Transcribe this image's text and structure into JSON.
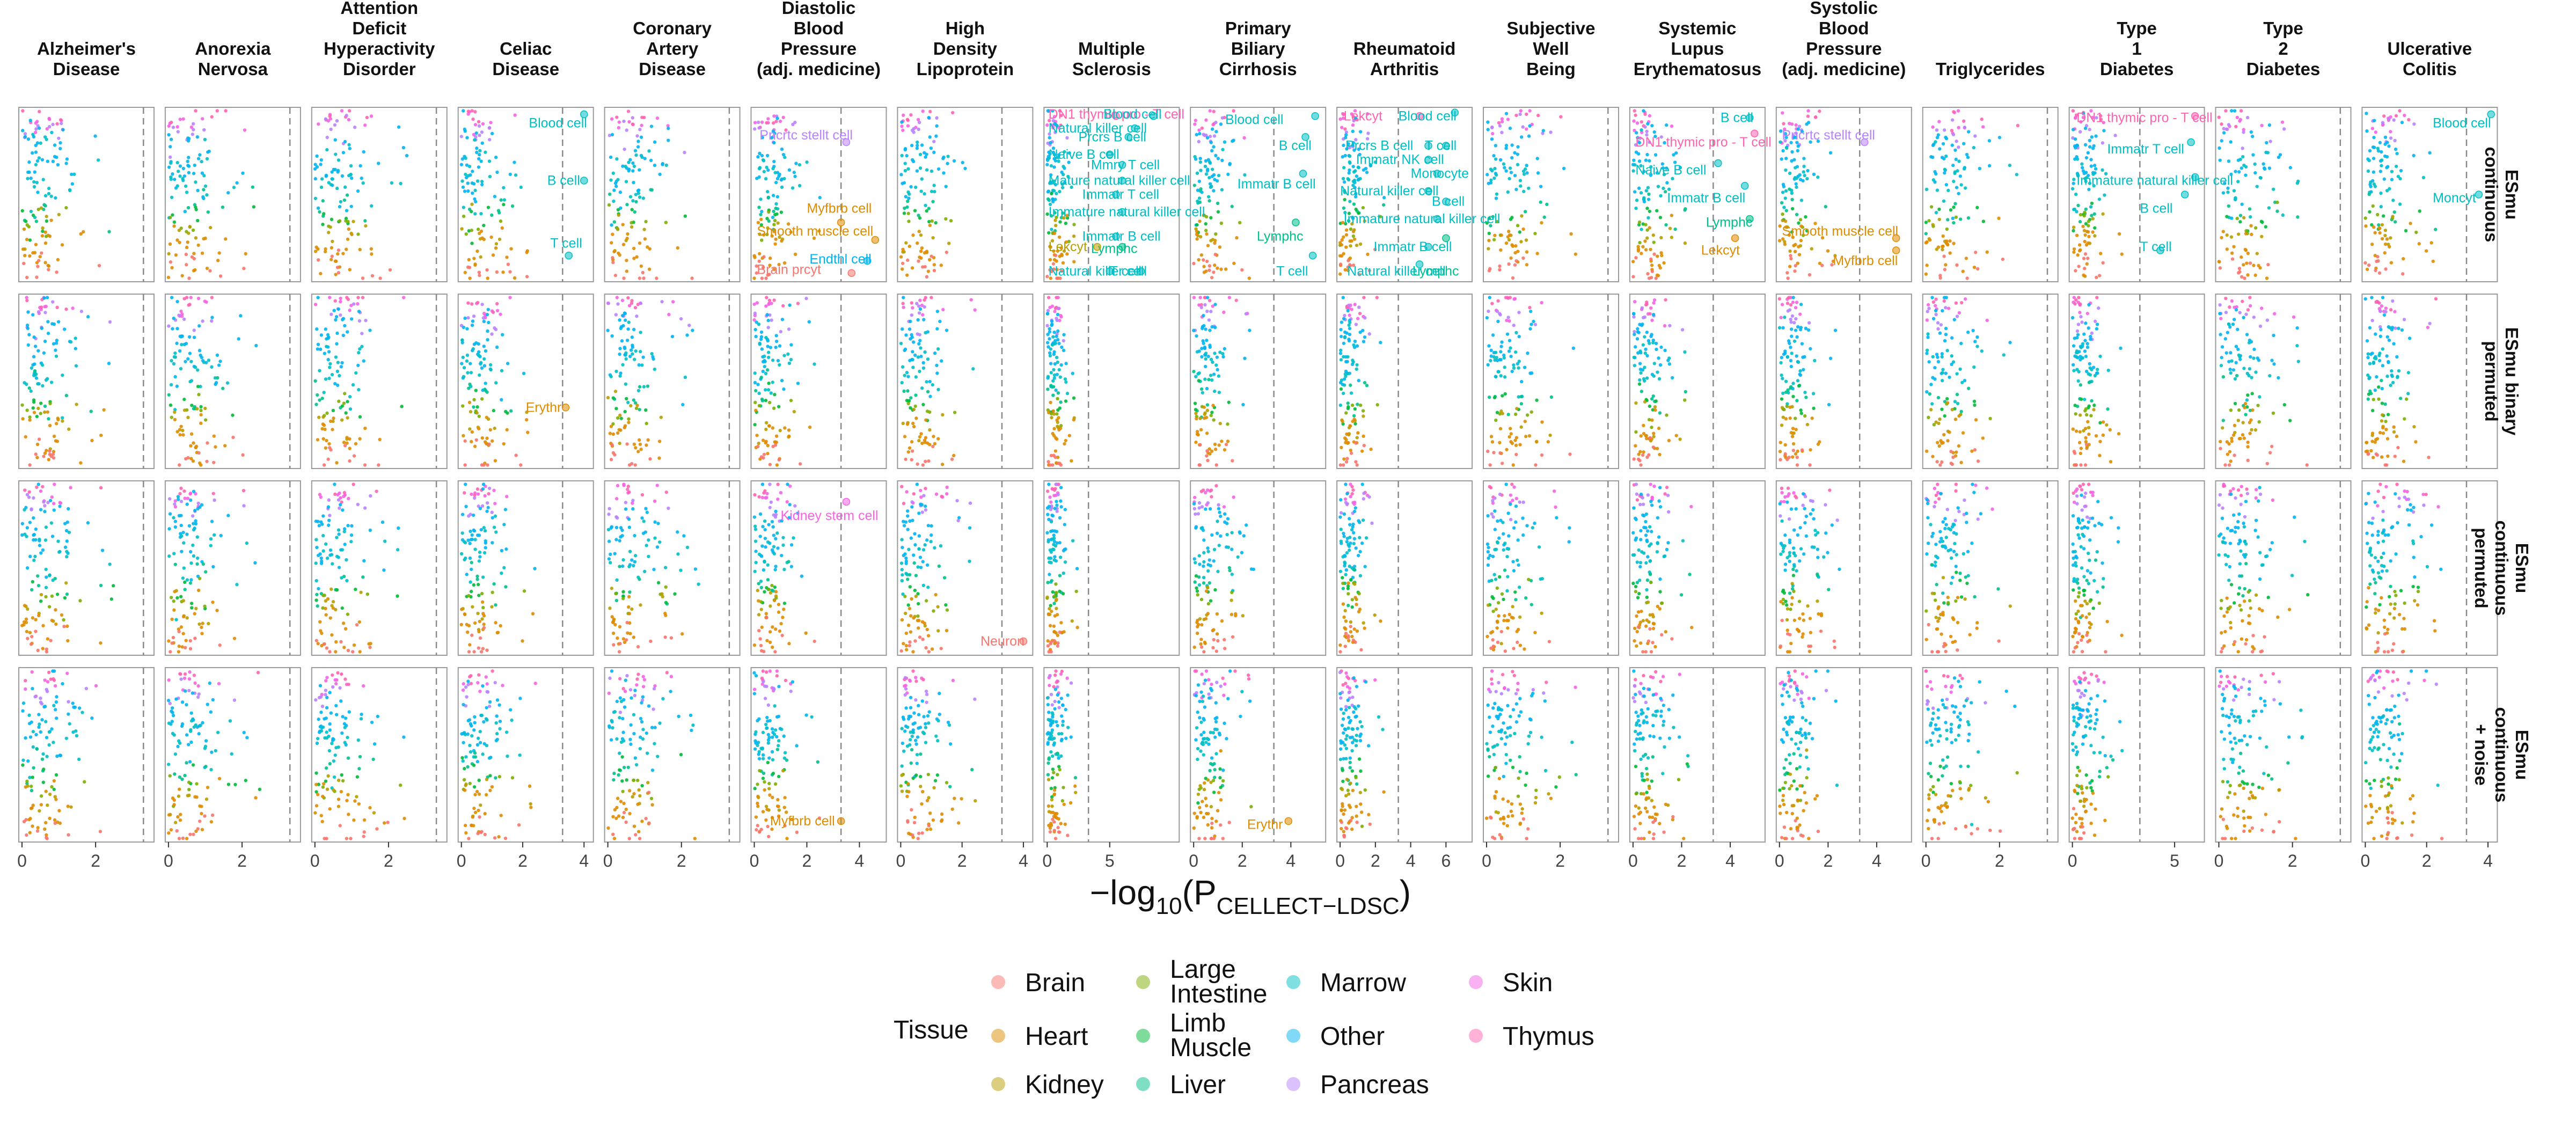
{
  "chart_data": {
    "type": "scatter",
    "facet_columns": [
      {
        "id": "alz",
        "title": "Alzheimer's\nDisease",
        "xlim": [
          0,
          3.5
        ],
        "ticks": [
          0,
          2
        ],
        "threshold": 3.3
      },
      {
        "id": "ano",
        "title": "Anorexia\nNervosa",
        "xlim": [
          0,
          3.5
        ],
        "ticks": [
          0,
          2
        ],
        "threshold": 3.3
      },
      {
        "id": "adhd",
        "title": "Attention\nDeficit\nHyperactivity\nDisorder",
        "xlim": [
          0,
          3.5
        ],
        "ticks": [
          0,
          2
        ],
        "threshold": 3.3
      },
      {
        "id": "cel",
        "title": "Celiac\nDisease",
        "xlim": [
          0,
          4.2
        ],
        "ticks": [
          0,
          2,
          4
        ],
        "threshold": 3.3
      },
      {
        "id": "cad",
        "title": "Coronary\nArtery\nDisease",
        "xlim": [
          0,
          3.5
        ],
        "ticks": [
          0,
          2
        ],
        "threshold": 3.3
      },
      {
        "id": "dbp",
        "title": "Diastolic\nBlood\nPressure\n(adj. medicine)",
        "xlim": [
          0,
          4.9
        ],
        "ticks": [
          0,
          2,
          4
        ],
        "threshold": 3.3
      },
      {
        "id": "hdl",
        "title": "High\nDensity\nLipoprotein",
        "xlim": [
          0,
          4.2
        ],
        "ticks": [
          0,
          2,
          4
        ],
        "threshold": 3.3
      },
      {
        "id": "ms",
        "title": "Multiple\nSclerosis",
        "xlim": [
          0,
          10.3
        ],
        "ticks": [
          0,
          5
        ],
        "threshold": 3.3
      },
      {
        "id": "pbc",
        "title": "Primary\nBiliary\nCirrhosis",
        "xlim": [
          0,
          5.3
        ],
        "ticks": [
          0,
          2,
          4
        ],
        "threshold": 3.3
      },
      {
        "id": "ra",
        "title": "Rheumatoid\nArthritis",
        "xlim": [
          0,
          7.3
        ],
        "ticks": [
          0,
          2,
          4,
          6
        ],
        "threshold": 3.3
      },
      {
        "id": "swb",
        "title": "Subjective\nWell\nBeing",
        "xlim": [
          0,
          3.5
        ],
        "ticks": [
          0,
          2
        ],
        "threshold": 3.3
      },
      {
        "id": "sle",
        "title": "Systemic\nLupus\nErythematosus",
        "xlim": [
          0,
          5.3
        ],
        "ticks": [
          0,
          2,
          4
        ],
        "threshold": 3.3
      },
      {
        "id": "sbp",
        "title": "Systolic\nBlood\nPressure\n(adj. medicine)",
        "xlim": [
          0,
          5.3
        ],
        "ticks": [
          0,
          2,
          4
        ],
        "threshold": 3.3
      },
      {
        "id": "tg",
        "title": "Triglycerides",
        "xlim": [
          0,
          3.5
        ],
        "ticks": [
          0,
          2
        ],
        "threshold": 3.3
      },
      {
        "id": "t1d",
        "title": "Type\n1\nDiabetes",
        "xlim": [
          0,
          6.3
        ],
        "ticks": [
          0,
          5
        ],
        "threshold": 3.3
      },
      {
        "id": "t2d",
        "title": "Type\n2\nDiabetes",
        "xlim": [
          0,
          3.5
        ],
        "ticks": [
          0,
          2
        ],
        "threshold": 3.3
      },
      {
        "id": "uc",
        "title": "Ulcerative\nColitis",
        "xlim": [
          0,
          4.2
        ],
        "ticks": [
          0,
          2,
          4
        ],
        "threshold": 3.3
      }
    ],
    "facet_rows": [
      {
        "id": "cont",
        "title": "ESmu\ncontinuous"
      },
      {
        "id": "binperm",
        "title": "ESmu binary\npermuted"
      },
      {
        "id": "contperm",
        "title": "ESmu\ncontinuous\npermuted"
      },
      {
        "id": "noise",
        "title": "ESmu\ncontinuous\n+ noise"
      }
    ],
    "xlabel_prefix": "−log",
    "xlabel_sub": "10",
    "xlabel_main": "(P",
    "xlabel_subsc": "CELLECT−LDSC",
    "xlabel_close": ")",
    "legend": {
      "title": "Tissue",
      "items": [
        {
          "name": "Brain",
          "color": "#F8766D"
        },
        {
          "name": "Heart",
          "color": "#DE8C00"
        },
        {
          "name": "Kidney",
          "color": "#B79F00"
        },
        {
          "name": "Large\nIntestine",
          "color": "#7CAE00"
        },
        {
          "name": "Limb\nMuscle",
          "color": "#00BA38"
        },
        {
          "name": "Liver",
          "color": "#00C08B"
        },
        {
          "name": "Marrow",
          "color": "#00BFC4"
        },
        {
          "name": "Other",
          "color": "#00B4F0"
        },
        {
          "name": "Pancreas",
          "color": "#B983FF"
        },
        {
          "name": "Skin",
          "color": "#F564E3"
        },
        {
          "name": "Thymus",
          "color": "#FF64B0"
        }
      ]
    },
    "labeled_points": [
      {
        "row": 0,
        "col": "cel",
        "x": 4.0,
        "y": 0.96,
        "text": "Blood cell",
        "tissue": "Marrow",
        "lx": 2.2,
        "ly": 0.91
      },
      {
        "row": 0,
        "col": "cel",
        "x": 4.0,
        "y": 0.58,
        "text": "B cell",
        "tissue": "Marrow",
        "lx": 2.8,
        "ly": 0.58
      },
      {
        "row": 0,
        "col": "cel",
        "x": 3.5,
        "y": 0.15,
        "text": "T cell",
        "tissue": "Marrow",
        "lx": 2.9,
        "ly": 0.22
      },
      {
        "row": 0,
        "col": "dbp",
        "x": 3.5,
        "y": 0.8,
        "text": "Pncrtc stellt cell",
        "tissue": "Pancreas",
        "lx": 0.2,
        "ly": 0.84
      },
      {
        "row": 0,
        "col": "dbp",
        "x": 3.3,
        "y": 0.34,
        "text": "Myfbrb cell",
        "tissue": "Heart",
        "lx": 2.0,
        "ly": 0.42
      },
      {
        "row": 0,
        "col": "dbp",
        "x": 4.6,
        "y": 0.24,
        "text": "Smooth muscle cell",
        "tissue": "Heart",
        "lx": 0.1,
        "ly": 0.29
      },
      {
        "row": 0,
        "col": "dbp",
        "x": 4.3,
        "y": 0.12,
        "text": "Endthl cell",
        "tissue": "Other",
        "lx": 2.1,
        "ly": 0.13
      },
      {
        "row": 0,
        "col": "dbp",
        "x": 3.7,
        "y": 0.05,
        "text": "Brain prcyt",
        "tissue": "Brain",
        "lx": 0.1,
        "ly": 0.07
      },
      {
        "row": 0,
        "col": "ms",
        "x": 5.5,
        "y": 0.95,
        "text": "DN1 thymic pro - T cell",
        "tissue": "Thymus",
        "lx": 0.1,
        "ly": 0.96
      },
      {
        "row": 0,
        "col": "ms",
        "x": 8.5,
        "y": 0.95,
        "text": "Blood cell",
        "tissue": "Marrow",
        "lx": 4.5,
        "ly": 0.96
      },
      {
        "row": 0,
        "col": "ms",
        "x": 7.0,
        "y": 0.88,
        "text": "Natural killer cell",
        "tissue": "Marrow",
        "lx": 0.1,
        "ly": 0.88
      },
      {
        "row": 0,
        "col": "ms",
        "x": 6.5,
        "y": 0.83,
        "text": "Prcrs B cell",
        "tissue": "Marrow",
        "lx": 2.5,
        "ly": 0.83
      },
      {
        "row": 0,
        "col": "ms",
        "x": 5.0,
        "y": 0.73,
        "text": "Naive B cell",
        "tissue": "Marrow",
        "lx": 0.1,
        "ly": 0.73
      },
      {
        "row": 0,
        "col": "ms",
        "x": 6.0,
        "y": 0.67,
        "text": "Mmry T cell",
        "tissue": "Marrow",
        "lx": 3.5,
        "ly": 0.67
      },
      {
        "row": 0,
        "col": "ms",
        "x": 6.0,
        "y": 0.58,
        "text": "Mature natural killer cell",
        "tissue": "Marrow",
        "lx": 0.1,
        "ly": 0.58
      },
      {
        "row": 0,
        "col": "ms",
        "x": 5.5,
        "y": 0.5,
        "text": "Immatr T cell",
        "tissue": "Marrow",
        "lx": 2.8,
        "ly": 0.5
      },
      {
        "row": 0,
        "col": "ms",
        "x": 6.0,
        "y": 0.4,
        "text": "Immature natural killer cell",
        "tissue": "Marrow",
        "lx": 0.1,
        "ly": 0.4
      },
      {
        "row": 0,
        "col": "ms",
        "x": 5.5,
        "y": 0.26,
        "text": "Immatr B cell",
        "tissue": "Marrow",
        "lx": 2.8,
        "ly": 0.26
      },
      {
        "row": 0,
        "col": "ms",
        "x": 6.0,
        "y": 0.2,
        "text": "Lymphc",
        "tissue": "Liver",
        "lx": 3.5,
        "ly": 0.19
      },
      {
        "row": 0,
        "col": "ms",
        "x": 4.0,
        "y": 0.2,
        "text": "Lekcyt",
        "tissue": "Kidney",
        "lx": 0.1,
        "ly": 0.2
      },
      {
        "row": 0,
        "col": "ms",
        "x": 5.0,
        "y": 0.06,
        "text": "Natural killer cell",
        "tissue": "Marrow",
        "lx": 0.1,
        "ly": 0.06
      },
      {
        "row": 0,
        "col": "ms",
        "x": 7.5,
        "y": 0.06,
        "text": "T cell",
        "tissue": "Marrow",
        "lx": 5.0,
        "ly": 0.06
      },
      {
        "row": 0,
        "col": "pbc",
        "x": 5.0,
        "y": 0.95,
        "text": "Blood cell",
        "tissue": "Marrow",
        "lx": 1.3,
        "ly": 0.93
      },
      {
        "row": 0,
        "col": "pbc",
        "x": 4.6,
        "y": 0.83,
        "text": "B cell",
        "tissue": "Marrow",
        "lx": 3.5,
        "ly": 0.78
      },
      {
        "row": 0,
        "col": "pbc",
        "x": 4.5,
        "y": 0.62,
        "text": "Immatr B cell",
        "tissue": "Marrow",
        "lx": 1.8,
        "ly": 0.56
      },
      {
        "row": 0,
        "col": "pbc",
        "x": 4.2,
        "y": 0.34,
        "text": "Lymphc",
        "tissue": "Liver",
        "lx": 2.6,
        "ly": 0.26
      },
      {
        "row": 0,
        "col": "pbc",
        "x": 4.9,
        "y": 0.15,
        "text": "T cell",
        "tissue": "Marrow",
        "lx": 3.4,
        "ly": 0.06
      },
      {
        "row": 0,
        "col": "ra",
        "x": 4.5,
        "y": 0.95,
        "text": "Lekcyt",
        "tissue": "Thymus",
        "lx": 0.2,
        "ly": 0.95
      },
      {
        "row": 0,
        "col": "ra",
        "x": 6.5,
        "y": 0.97,
        "text": "Blood cell",
        "tissue": "Marrow",
        "lx": 3.3,
        "ly": 0.95
      },
      {
        "row": 0,
        "col": "ra",
        "x": 5.0,
        "y": 0.78,
        "text": "Prcrs B cell",
        "tissue": "Marrow",
        "lx": 0.3,
        "ly": 0.78
      },
      {
        "row": 0,
        "col": "ra",
        "x": 6.0,
        "y": 0.78,
        "text": "T cell",
        "tissue": "Marrow",
        "lx": 4.8,
        "ly": 0.78
      },
      {
        "row": 0,
        "col": "ra",
        "x": 5.0,
        "y": 0.7,
        "text": "Immatr NK cell",
        "tissue": "Marrow",
        "lx": 0.9,
        "ly": 0.7
      },
      {
        "row": 0,
        "col": "ra",
        "x": 5.5,
        "y": 0.62,
        "text": "Monocyte",
        "tissue": "Marrow",
        "lx": 4.0,
        "ly": 0.62
      },
      {
        "row": 0,
        "col": "ra",
        "x": 5.0,
        "y": 0.52,
        "text": "Natural killer cell",
        "tissue": "Marrow",
        "lx": 0.0,
        "ly": 0.52
      },
      {
        "row": 0,
        "col": "ra",
        "x": 6.0,
        "y": 0.46,
        "text": "B cell",
        "tissue": "Marrow",
        "lx": 5.2,
        "ly": 0.46
      },
      {
        "row": 0,
        "col": "ra",
        "x": 5.5,
        "y": 0.36,
        "text": "Immature natural killer cell",
        "tissue": "Marrow",
        "lx": 0.2,
        "ly": 0.36
      },
      {
        "row": 0,
        "col": "ra",
        "x": 5.0,
        "y": 0.2,
        "text": "Immatr B cell",
        "tissue": "Marrow",
        "lx": 1.9,
        "ly": 0.2
      },
      {
        "row": 0,
        "col": "ra",
        "x": 6.0,
        "y": 0.25,
        "text": "Lymphc",
        "tissue": "Liver",
        "lx": 4.1,
        "ly": 0.06
      },
      {
        "row": 0,
        "col": "ra",
        "x": 4.5,
        "y": 0.1,
        "text": "Natural killer cell",
        "tissue": "Marrow",
        "lx": 0.4,
        "ly": 0.06
      },
      {
        "row": 0,
        "col": "sle",
        "x": 4.8,
        "y": 0.94,
        "text": "B cell",
        "tissue": "Marrow",
        "lx": 3.6,
        "ly": 0.94
      },
      {
        "row": 0,
        "col": "sle",
        "x": 5.0,
        "y": 0.85,
        "text": "DN1 thymic pro - T cell",
        "tissue": "Thymus",
        "lx": 0.1,
        "ly": 0.8
      },
      {
        "row": 0,
        "col": "sle",
        "x": 3.5,
        "y": 0.68,
        "text": "Naive B cell",
        "tissue": "Marrow",
        "lx": 0.1,
        "ly": 0.64
      },
      {
        "row": 0,
        "col": "sle",
        "x": 4.6,
        "y": 0.55,
        "text": "Immatr B cell",
        "tissue": "Marrow",
        "lx": 1.4,
        "ly": 0.48
      },
      {
        "row": 0,
        "col": "sle",
        "x": 4.8,
        "y": 0.36,
        "text": "Lymphc",
        "tissue": "Liver",
        "lx": 3.0,
        "ly": 0.34
      },
      {
        "row": 0,
        "col": "sle",
        "x": 4.2,
        "y": 0.25,
        "text": "Lekcyt",
        "tissue": "Heart",
        "lx": 2.8,
        "ly": 0.18
      },
      {
        "row": 0,
        "col": "sbp",
        "x": 3.5,
        "y": 0.8,
        "text": "Pncrtc stellt cell",
        "tissue": "Pancreas",
        "lx": 0.1,
        "ly": 0.84
      },
      {
        "row": 0,
        "col": "sbp",
        "x": 4.8,
        "y": 0.25,
        "text": "Smooth muscle cell",
        "tissue": "Heart",
        "lx": 0.1,
        "ly": 0.29
      },
      {
        "row": 0,
        "col": "sbp",
        "x": 4.8,
        "y": 0.18,
        "text": "Myfbrb cell",
        "tissue": "Heart",
        "lx": 2.2,
        "ly": 0.12
      },
      {
        "row": 0,
        "col": "t1d",
        "x": 6.0,
        "y": 0.95,
        "text": "DN1 thymic pro - T cell",
        "tissue": "Thymus",
        "lx": 0.2,
        "ly": 0.94
      },
      {
        "row": 0,
        "col": "t1d",
        "x": 5.8,
        "y": 0.8,
        "text": "Immatr T cell",
        "tissue": "Marrow",
        "lx": 1.7,
        "ly": 0.76
      },
      {
        "row": 0,
        "col": "t1d",
        "x": 6.0,
        "y": 0.6,
        "text": "Immature natural killer cell",
        "tissue": "Marrow",
        "lx": 0.2,
        "ly": 0.58
      },
      {
        "row": 0,
        "col": "t1d",
        "x": 5.5,
        "y": 0.5,
        "text": "B cell",
        "tissue": "Marrow",
        "lx": 3.3,
        "ly": 0.42
      },
      {
        "row": 0,
        "col": "t1d",
        "x": 4.3,
        "y": 0.18,
        "text": "T cell",
        "tissue": "Marrow",
        "lx": 3.3,
        "ly": 0.2
      },
      {
        "row": 0,
        "col": "uc",
        "x": 4.1,
        "y": 0.96,
        "text": "Blood cell",
        "tissue": "Marrow",
        "lx": 2.2,
        "ly": 0.91
      },
      {
        "row": 0,
        "col": "uc",
        "x": 3.7,
        "y": 0.5,
        "text": "Moncyt",
        "tissue": "Marrow",
        "lx": 2.2,
        "ly": 0.48
      },
      {
        "row": 1,
        "col": "cel",
        "x": 3.4,
        "y": 0.35,
        "text": "Erythr",
        "tissue": "Heart",
        "lx": 2.1,
        "ly": 0.35
      },
      {
        "row": 2,
        "col": "dbp",
        "x": 3.5,
        "y": 0.88,
        "text": "Kidney stem cell",
        "tissue": "Skin",
        "lx": 1.0,
        "ly": 0.8
      },
      {
        "row": 2,
        "col": "hdl",
        "x": 4.0,
        "y": 0.08,
        "text": "Neuron",
        "tissue": "Brain",
        "lx": 2.6,
        "ly": 0.08
      },
      {
        "row": 3,
        "col": "dbp",
        "x": 3.3,
        "y": 0.12,
        "text": "Myfbrb cell",
        "tissue": "Heart",
        "lx": 0.6,
        "ly": 0.12
      },
      {
        "row": 3,
        "col": "pbc",
        "x": 3.9,
        "y": 0.12,
        "text": "Erythr",
        "tissue": "Heart",
        "lx": 2.2,
        "ly": 0.1
      }
    ]
  }
}
